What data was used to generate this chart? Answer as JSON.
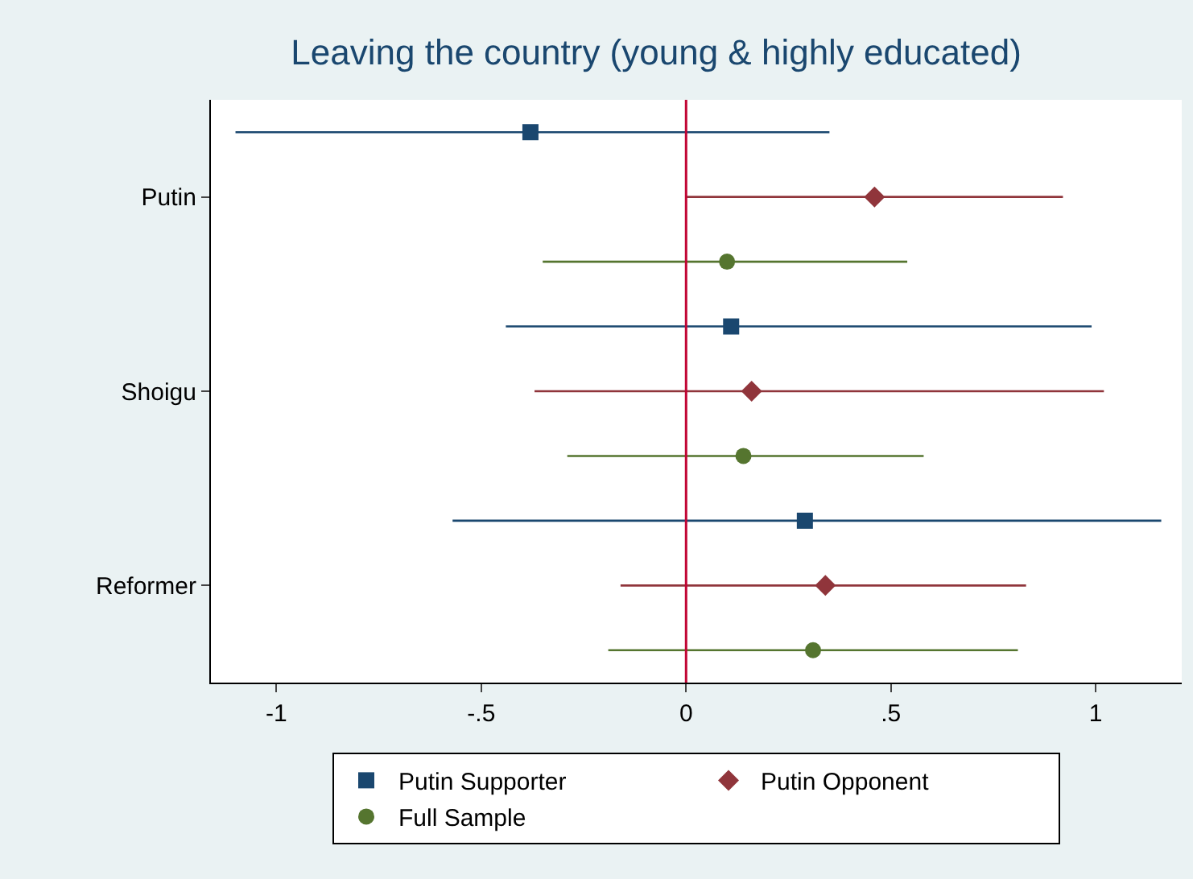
{
  "chart_data": {
    "type": "scatter",
    "orientation": "horizontal",
    "title": "Leaving the country (young & highly educated)",
    "categories": [
      null,
      "Putin",
      null,
      null,
      "Shoigu",
      null,
      null,
      "Reformer",
      null
    ],
    "series": [
      {
        "name": "Putin Supporter",
        "color": "#1a476f",
        "marker": "square",
        "values": [
          -0.38,
          null,
          null,
          0.11,
          null,
          null,
          0.29,
          null,
          null
        ],
        "errors": [
          [
            -1.1,
            0.35
          ],
          null,
          null,
          [
            -0.44,
            0.99
          ],
          null,
          null,
          [
            -0.57,
            1.16
          ],
          null,
          null
        ]
      },
      {
        "name": "Putin Opponent",
        "color": "#90353b",
        "marker": "diamond",
        "values": [
          null,
          0.46,
          null,
          null,
          0.16,
          null,
          null,
          0.34,
          null
        ],
        "errors": [
          null,
          [
            0.0,
            0.92
          ],
          null,
          null,
          [
            -0.37,
            1.02
          ],
          null,
          null,
          [
            -0.16,
            0.83
          ],
          null
        ]
      },
      {
        "name": "Full Sample",
        "color": "#55752f",
        "marker": "circle",
        "values": [
          null,
          null,
          0.1,
          null,
          null,
          0.14,
          null,
          null,
          0.31
        ],
        "errors": [
          null,
          null,
          [
            -0.35,
            0.54
          ],
          null,
          null,
          [
            -0.29,
            0.58
          ],
          null,
          null,
          [
            -0.19,
            0.81
          ]
        ]
      }
    ],
    "xlim": [
      -1.16,
      1.21
    ],
    "xticks": [
      {
        "value": -1,
        "label": "-1"
      },
      {
        "value": -0.5,
        "label": "-.5"
      },
      0,
      {
        "value": 0.5,
        "label": ".5"
      },
      1
    ],
    "ref_lines": [
      {
        "axis": "x",
        "value": 0,
        "color": "#c10534"
      }
    ],
    "legend": "bottom"
  }
}
